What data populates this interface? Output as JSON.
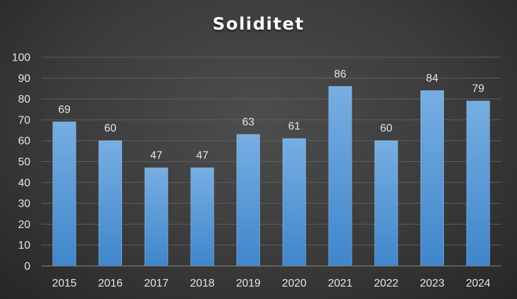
{
  "chart_data": {
    "type": "bar",
    "title": "Soliditet",
    "xlabel": "",
    "ylabel": "",
    "categories": [
      "2015",
      "2016",
      "2017",
      "2018",
      "2019",
      "2020",
      "2021",
      "2022",
      "2023",
      "2024"
    ],
    "values": [
      69,
      60,
      47,
      47,
      63,
      61,
      86,
      60,
      84,
      79
    ],
    "ylim": [
      0,
      100
    ],
    "yticks": [
      0,
      10,
      20,
      30,
      40,
      50,
      60,
      70,
      80,
      90,
      100
    ],
    "grid": true,
    "legend": "none",
    "data_labels": true,
    "colors": {
      "bar_top": "#77aee2",
      "bar_bottom": "#3f86cb",
      "bar_edge": "#8dbde8",
      "gridline": "#5e5e5e",
      "axis_line": "#8a8a8a",
      "text": "#e6e6e6",
      "title": "#ffffff"
    }
  }
}
